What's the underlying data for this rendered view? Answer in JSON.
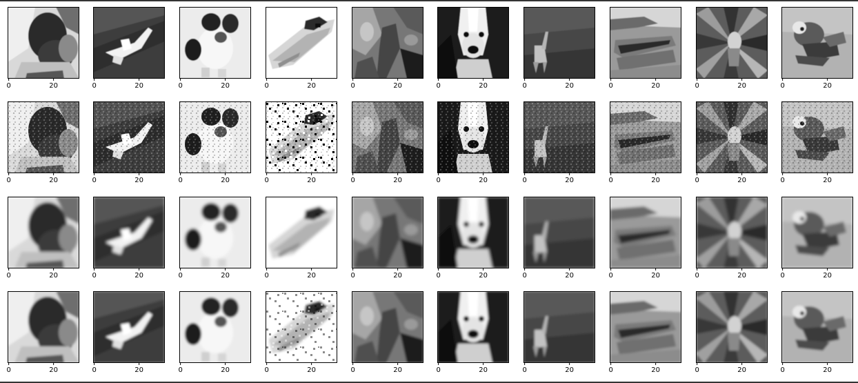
{
  "figure": {
    "columns": [
      {
        "subject": "dog"
      },
      {
        "subject": "airplane"
      },
      {
        "subject": "dog"
      },
      {
        "subject": "ship"
      },
      {
        "subject": "plant"
      },
      {
        "subject": "dog"
      },
      {
        "subject": "deer"
      },
      {
        "subject": "ship"
      },
      {
        "subject": "flower"
      },
      {
        "subject": "bird"
      }
    ],
    "rows": [
      {
        "variant": "original"
      },
      {
        "variant": "noisy"
      },
      {
        "variant": "smoothed"
      },
      {
        "variant": "reconstructed"
      }
    ],
    "axis": {
      "x_ticks": [
        "0",
        "20"
      ],
      "x_tick_values": [
        0,
        20
      ],
      "image_size": 32
    },
    "colors": {
      "frame": "#000000",
      "background": "#ffffff",
      "top_rule": "#333333"
    }
  }
}
